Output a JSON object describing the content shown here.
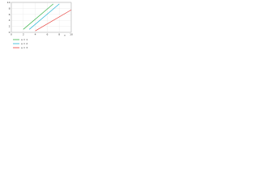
{
  "chart_data": {
    "type": "line",
    "x_label": "x",
    "series": [
      {
        "name": "a = 1",
        "color": "#3cb44b",
        "x": [
          2,
          7
        ],
        "values": [
          1,
          9.5
        ]
      },
      {
        "name": "a = 2",
        "color": "#29b6d6",
        "x": [
          3,
          8
        ],
        "values": [
          1,
          9.5
        ]
      },
      {
        "name": "a = 3",
        "color": "#e8413c",
        "x": [
          4,
          10
        ],
        "values": [
          0.5,
          7.5
        ]
      }
    ],
    "xlim": [
      0,
      10
    ],
    "xticks": [
      0,
      2,
      4,
      6,
      8,
      10
    ],
    "ylim": [
      0,
      10
    ],
    "yticks": [
      0,
      2,
      4,
      6,
      8,
      10
    ],
    "grid": true
  }
}
